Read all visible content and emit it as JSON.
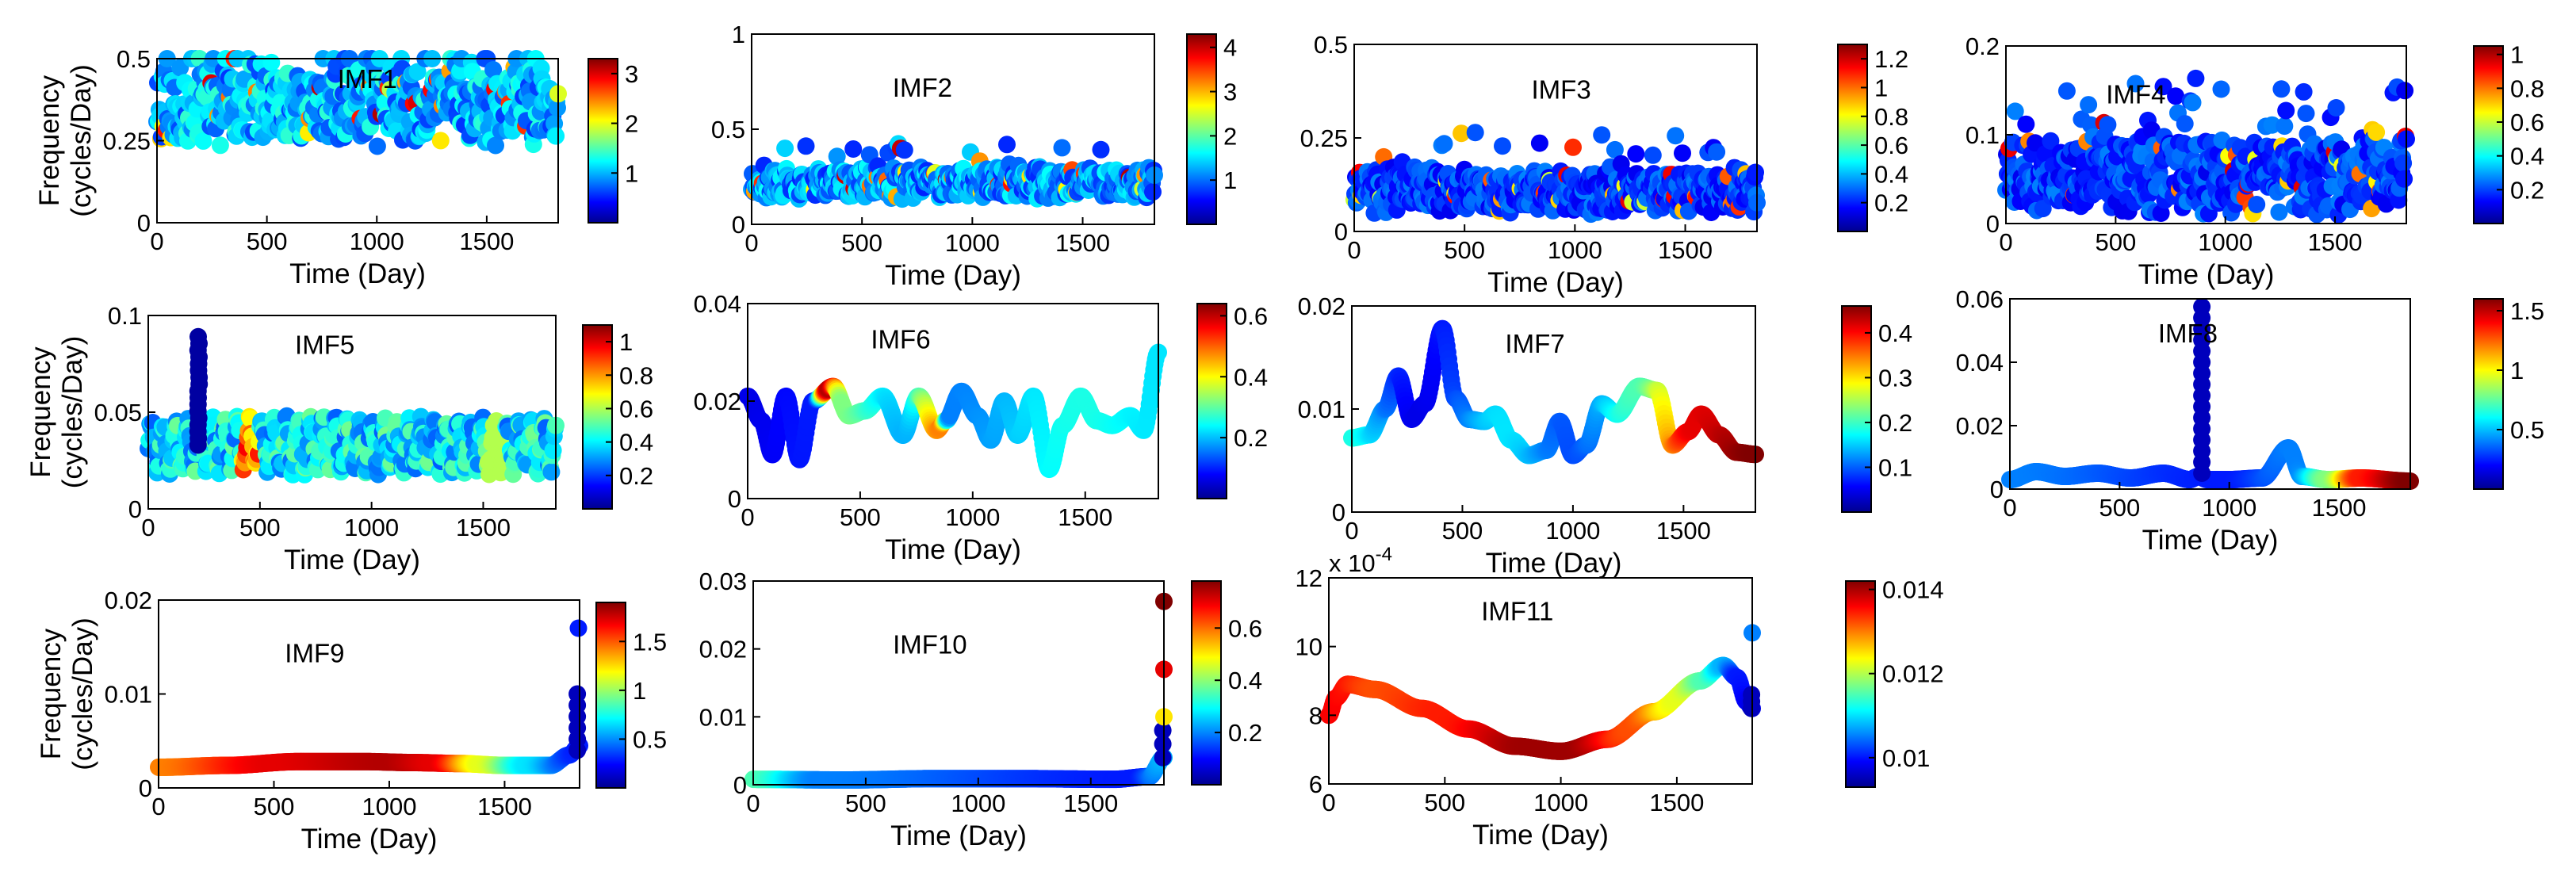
{
  "figure": {
    "xlabel": "Time (Day)",
    "ylabel_lines": [
      "Frequency",
      "(cycles/Day)"
    ],
    "colormap": [
      "#00008f",
      "#0000ff",
      "#0080ff",
      "#00ffff",
      "#80ff80",
      "#ffff00",
      "#ff8000",
      "#ff0000",
      "#800000"
    ]
  },
  "chart_data": [
    {
      "id": "imf1",
      "type": "scatter",
      "label": "IMF1",
      "x": [
        0,
        1825
      ],
      "y_range": [
        0,
        0.5
      ],
      "xticks": [
        "0",
        "500",
        "1000",
        "1500"
      ],
      "yticks": [
        "0",
        "0.25",
        "0.5"
      ],
      "cbar_range": [
        0.0,
        3.3
      ],
      "cbar_ticks": [
        "1",
        "2",
        "3"
      ],
      "show_ylabel": true,
      "boxed": true,
      "series": {
        "kind": "noise",
        "base": 0.36,
        "amp": 0.1,
        "outliers": 0.04,
        "color_level": 0.5,
        "seed": 11
      }
    },
    {
      "id": "imf2",
      "type": "scatter",
      "label": "IMF2",
      "x": [
        0,
        1825
      ],
      "y_range": [
        0,
        1
      ],
      "xticks": [
        "0",
        "500",
        "1000",
        "1500"
      ],
      "yticks": [
        "0",
        "0.5",
        "1"
      ],
      "cbar_range": [
        0.0,
        4.3
      ],
      "cbar_ticks": [
        "1",
        "2",
        "3",
        "4"
      ],
      "show_ylabel": false,
      "boxed": true,
      "series": {
        "kind": "noise",
        "base": 0.22,
        "amp": 0.07,
        "outliers": 0.02,
        "color_level": 0.45,
        "seed": 23
      }
    },
    {
      "id": "imf3",
      "type": "scatter",
      "label": "IMF3",
      "x": [
        0,
        1825
      ],
      "y_range": [
        0,
        0.5
      ],
      "xticks": [
        "0",
        "500",
        "1000",
        "1500"
      ],
      "yticks": [
        "0",
        "0.25",
        "0.5"
      ],
      "cbar_range": [
        0.0,
        1.3
      ],
      "cbar_ticks": [
        "0.2",
        "0.4",
        "0.6",
        "0.8",
        "1",
        "1.2"
      ],
      "show_ylabel": false,
      "boxed": false,
      "series": {
        "kind": "noise",
        "base": 0.11,
        "amp": 0.05,
        "outliers": 0.05,
        "color_level": 0.3,
        "seed": 37
      }
    },
    {
      "id": "imf4",
      "type": "scatter",
      "label": "IMF4",
      "x": [
        0,
        1825
      ],
      "y_range": [
        0,
        0.2
      ],
      "xticks": [
        "0",
        "500",
        "1000",
        "1500"
      ],
      "yticks": [
        "0",
        "0.1",
        "0.2"
      ],
      "cbar_range": [
        0.0,
        1.05
      ],
      "cbar_ticks": [
        "0.2",
        "0.4",
        "0.6",
        "0.8",
        "1"
      ],
      "show_ylabel": false,
      "boxed": false,
      "series": {
        "kind": "noise",
        "base": 0.055,
        "amp": 0.035,
        "outliers": 0.08,
        "color_level": 0.3,
        "seed": 41
      }
    },
    {
      "id": "imf5",
      "type": "scatter",
      "label": "IMF5",
      "x": [
        0,
        1825
      ],
      "y_range": [
        0,
        0.1
      ],
      "xticks": [
        "0",
        "500",
        "1000",
        "1500"
      ],
      "yticks": [
        "0",
        "0.05",
        "0.1"
      ],
      "cbar_range": [
        0.0,
        1.1
      ],
      "cbar_ticks": [
        "0.2",
        "0.4",
        "0.6",
        "0.8",
        "1"
      ],
      "show_ylabel": true,
      "boxed": true,
      "series": {
        "kind": "wave",
        "base": 0.033,
        "amp": 0.012,
        "period": 55,
        "color_level": 0.35,
        "seed": 53,
        "spike": {
          "x": 225,
          "peak": 0.09,
          "width": 14
        }
      }
    },
    {
      "id": "imf6",
      "type": "scatter",
      "label": "IMF6",
      "x": [
        0,
        1825
      ],
      "y_range": [
        0,
        0.04
      ],
      "xticks": [
        "0",
        "500",
        "1000",
        "1500"
      ],
      "yticks": [
        "0",
        "0.02",
        "0.04"
      ],
      "cbar_range": [
        0.0,
        0.64
      ],
      "cbar_ticks": [
        "0.2",
        "0.4",
        "0.6"
      ],
      "show_ylabel": false,
      "boxed": false,
      "series": {
        "kind": "curve",
        "points": [
          [
            0,
            0.021
          ],
          [
            60,
            0.016
          ],
          [
            110,
            0.009
          ],
          [
            170,
            0.021
          ],
          [
            230,
            0.008
          ],
          [
            290,
            0.02
          ],
          [
            380,
            0.023
          ],
          [
            450,
            0.017
          ],
          [
            520,
            0.018
          ],
          [
            600,
            0.021
          ],
          [
            690,
            0.013
          ],
          [
            760,
            0.021
          ],
          [
            840,
            0.014
          ],
          [
            880,
            0.016
          ],
          [
            950,
            0.022
          ],
          [
            1020,
            0.017
          ],
          [
            1080,
            0.012
          ],
          [
            1140,
            0.02
          ],
          [
            1200,
            0.013
          ],
          [
            1270,
            0.021
          ],
          [
            1340,
            0.006
          ],
          [
            1400,
            0.015
          ],
          [
            1480,
            0.021
          ],
          [
            1550,
            0.016
          ],
          [
            1620,
            0.015
          ],
          [
            1700,
            0.017
          ],
          [
            1760,
            0.014
          ],
          [
            1825,
            0.03
          ]
        ],
        "colors": [
          [
            0,
            0.1
          ],
          [
            300,
            0.15
          ],
          [
            360,
            0.95
          ],
          [
            420,
            0.5
          ],
          [
            700,
            0.3
          ],
          [
            860,
            0.75
          ],
          [
            900,
            0.25
          ],
          [
            1500,
            0.4
          ],
          [
            1825,
            0.35
          ]
        ]
      }
    },
    {
      "id": "imf7",
      "type": "scatter",
      "label": "IMF7",
      "x": [
        0,
        1825
      ],
      "y_range": [
        0,
        0.02
      ],
      "xticks": [
        "0",
        "500",
        "1000",
        "1500"
      ],
      "yticks": [
        "0",
        "0.01",
        "0.02"
      ],
      "cbar_range": [
        0.0,
        0.46
      ],
      "cbar_ticks": [
        "0.1",
        "0.2",
        "0.3",
        "0.4"
      ],
      "show_ylabel": false,
      "boxed": false,
      "series": {
        "kind": "curve",
        "points": [
          [
            0,
            0.0072
          ],
          [
            80,
            0.0075
          ],
          [
            150,
            0.01
          ],
          [
            210,
            0.0132
          ],
          [
            270,
            0.009
          ],
          [
            330,
            0.0105
          ],
          [
            410,
            0.0178
          ],
          [
            470,
            0.011
          ],
          [
            530,
            0.009
          ],
          [
            600,
            0.0088
          ],
          [
            650,
            0.0095
          ],
          [
            720,
            0.007
          ],
          [
            800,
            0.0055
          ],
          [
            880,
            0.006
          ],
          [
            940,
            0.0088
          ],
          [
            1000,
            0.0055
          ],
          [
            1060,
            0.0065
          ],
          [
            1130,
            0.0105
          ],
          [
            1200,
            0.0095
          ],
          [
            1300,
            0.0122
          ],
          [
            1380,
            0.0118
          ],
          [
            1450,
            0.0065
          ],
          [
            1520,
            0.0078
          ],
          [
            1580,
            0.0095
          ],
          [
            1660,
            0.0075
          ],
          [
            1740,
            0.0058
          ],
          [
            1825,
            0.0056
          ]
        ],
        "colors": [
          [
            0,
            0.4
          ],
          [
            300,
            0.1
          ],
          [
            700,
            0.35
          ],
          [
            1000,
            0.2
          ],
          [
            1300,
            0.45
          ],
          [
            1550,
            0.9
          ],
          [
            1825,
            1.0
          ]
        ]
      }
    },
    {
      "id": "imf8",
      "type": "scatter",
      "label": "IMF8",
      "x": [
        0,
        1825
      ],
      "y_range": [
        0,
        0.06
      ],
      "xticks": [
        "0",
        "500",
        "1000",
        "1500"
      ],
      "yticks": [
        "0",
        "0.02",
        "0.04",
        "0.06"
      ],
      "cbar_range": [
        0.0,
        1.6
      ],
      "cbar_ticks": [
        "0.5",
        "1",
        "1.5"
      ],
      "show_ylabel": false,
      "boxed": false,
      "series": {
        "kind": "curve",
        "points": [
          [
            0,
            0.003
          ],
          [
            120,
            0.0055
          ],
          [
            250,
            0.004
          ],
          [
            400,
            0.005
          ],
          [
            550,
            0.0035
          ],
          [
            700,
            0.005
          ],
          [
            820,
            0.003
          ],
          [
            860,
            0.004
          ],
          [
            900,
            0.003
          ],
          [
            1000,
            0.003
          ],
          [
            1150,
            0.0035
          ],
          [
            1270,
            0.013
          ],
          [
            1330,
            0.004
          ],
          [
            1450,
            0.003
          ],
          [
            1600,
            0.0035
          ],
          [
            1825,
            0.0025
          ]
        ],
        "colors": [
          [
            0,
            0.25
          ],
          [
            1000,
            0.15
          ],
          [
            1300,
            0.25
          ],
          [
            1450,
            0.5
          ],
          [
            1600,
            0.85
          ],
          [
            1825,
            1.0
          ]
        ],
        "column": {
          "x": 875,
          "from": 0.005,
          "to": 0.058,
          "step": 0.0035
        }
      }
    },
    {
      "id": "imf9",
      "type": "scatter",
      "label": "IMF9",
      "x": [
        0,
        1825
      ],
      "y_range": [
        0,
        0.02
      ],
      "xticks": [
        "0",
        "500",
        "1000",
        "1500"
      ],
      "yticks": [
        "0",
        "0.01",
        "0.02"
      ],
      "cbar_range": [
        0.0,
        1.9
      ],
      "cbar_ticks": [
        "0.5",
        "1",
        "1.5"
      ],
      "show_ylabel": true,
      "boxed": true,
      "series": {
        "kind": "curve",
        "points": [
          [
            0,
            0.0022
          ],
          [
            300,
            0.0024
          ],
          [
            600,
            0.0028
          ],
          [
            900,
            0.0028
          ],
          [
            1100,
            0.0027
          ],
          [
            1300,
            0.0026
          ],
          [
            1500,
            0.0024
          ],
          [
            1700,
            0.0024
          ],
          [
            1780,
            0.0035
          ],
          [
            1825,
            0.0045
          ]
        ],
        "colors": [
          [
            0,
            0.75
          ],
          [
            500,
            0.9
          ],
          [
            1000,
            0.95
          ],
          [
            1200,
            0.9
          ],
          [
            1400,
            0.6
          ],
          [
            1600,
            0.35
          ],
          [
            1825,
            0.15
          ]
        ],
        "column": {
          "x": 1815,
          "from": 0.004,
          "to": 0.01,
          "step": 0.0012
        },
        "extra": [
          [
            1820,
            0.017
          ]
        ]
      }
    },
    {
      "id": "imf10",
      "type": "scatter",
      "label": "IMF10",
      "x": [
        0,
        1825
      ],
      "y_range": [
        0,
        0.03
      ],
      "xticks": [
        "0",
        "500",
        "1000",
        "1500"
      ],
      "yticks": [
        "0",
        "0.01",
        "0.02",
        "0.03"
      ],
      "cbar_range": [
        0.0,
        0.78
      ],
      "cbar_ticks": [
        "0.2",
        "0.4",
        "0.6"
      ],
      "show_ylabel": false,
      "boxed": false,
      "series": {
        "kind": "curve",
        "points": [
          [
            0,
            0.0008
          ],
          [
            400,
            0.0007
          ],
          [
            800,
            0.0009
          ],
          [
            1200,
            0.0009
          ],
          [
            1600,
            0.0008
          ],
          [
            1760,
            0.0012
          ],
          [
            1825,
            0.004
          ]
        ],
        "colors": [
          [
            0,
            0.45
          ],
          [
            300,
            0.25
          ],
          [
            1700,
            0.15
          ],
          [
            1825,
            0.3
          ]
        ],
        "column": {
          "x": 1820,
          "from": 0.004,
          "to": 0.008,
          "step": 0.002
        },
        "extra": [
          [
            1825,
            0.01
          ],
          [
            1825,
            0.017
          ],
          [
            1825,
            0.027
          ]
        ],
        "extra_colors": [
          0.65,
          0.9,
          1.0
        ]
      }
    },
    {
      "id": "imf11",
      "type": "scatter",
      "label": "IMF11",
      "x": [
        0,
        1825
      ],
      "y_range": [
        6,
        12
      ],
      "y_exponent": "x 10",
      "y_exponent_power": "-4",
      "xticks": [
        "0",
        "500",
        "1000",
        "1500"
      ],
      "yticks": [
        "6",
        "8",
        "10",
        "12"
      ],
      "cbar_range": [
        0.0093,
        0.0142
      ],
      "cbar_ticks": [
        "0.01",
        "0.012",
        "0.014"
      ],
      "show_ylabel": false,
      "boxed": false,
      "series": {
        "kind": "curve",
        "points": [
          [
            0,
            8.0
          ],
          [
            30,
            8.5
          ],
          [
            80,
            8.9
          ],
          [
            200,
            8.75
          ],
          [
            400,
            8.2
          ],
          [
            600,
            7.6
          ],
          [
            800,
            7.1
          ],
          [
            1000,
            6.95
          ],
          [
            1200,
            7.3
          ],
          [
            1400,
            8.1
          ],
          [
            1600,
            9.0
          ],
          [
            1700,
            9.45
          ],
          [
            1760,
            9.1
          ],
          [
            1800,
            8.4
          ],
          [
            1825,
            8.2
          ]
        ],
        "colors": [
          [
            0,
            0.88
          ],
          [
            200,
            0.8
          ],
          [
            500,
            0.85
          ],
          [
            850,
            0.97
          ],
          [
            1050,
            0.97
          ],
          [
            1300,
            0.8
          ],
          [
            1500,
            0.6
          ],
          [
            1620,
            0.45
          ],
          [
            1700,
            0.3
          ],
          [
            1760,
            0.15
          ],
          [
            1825,
            0.1
          ]
        ],
        "column": {
          "x": 1822,
          "from": 8.2,
          "to": 8.6,
          "step": 0.2
        },
        "extra": [
          [
            1825,
            10.4
          ]
        ],
        "extra_colors": [
          0.25
        ]
      }
    }
  ]
}
